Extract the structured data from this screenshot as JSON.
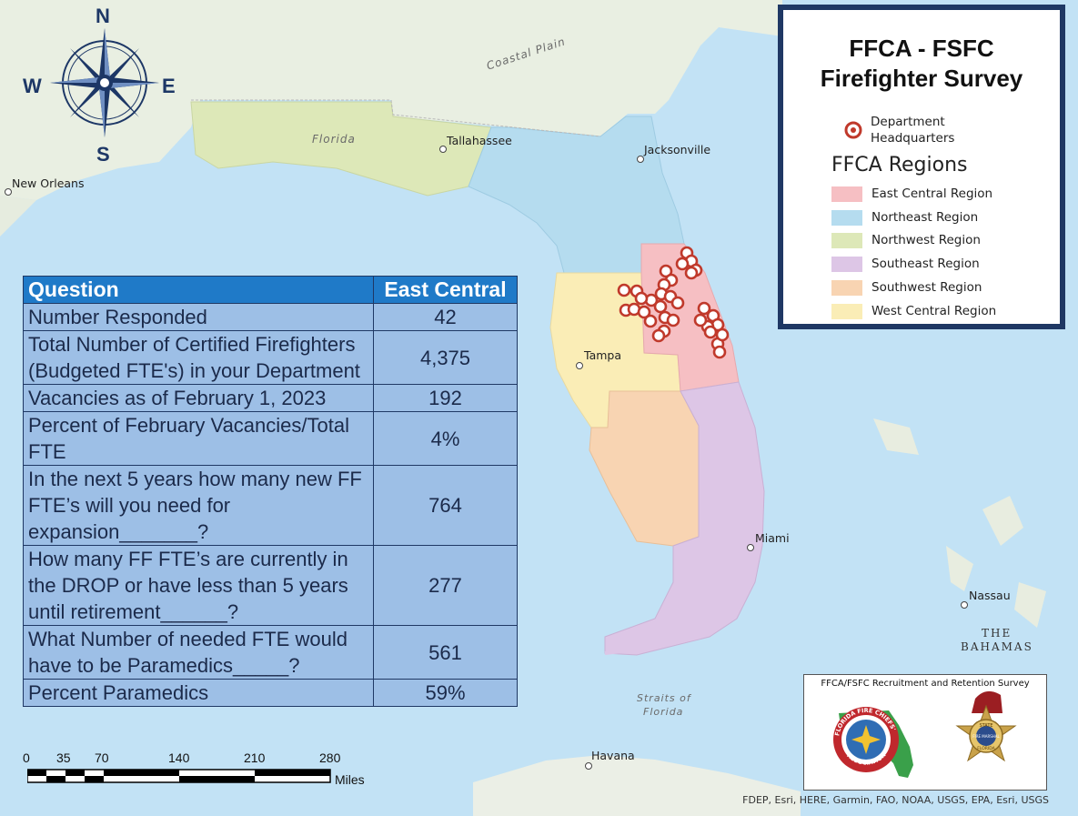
{
  "map": {
    "place_labels": {
      "coastal_plain": "Coastal Plain",
      "florida": "Florida",
      "tallahassee": "Tallahassee",
      "jacksonville": "Jacksonville",
      "new_orleans": "New Orleans",
      "tampa": "Tampa",
      "miami": "Miami",
      "nassau": "Nassau",
      "bahamas_line1": "THE",
      "bahamas_line2": "BAHAMAS",
      "straits_line1": "Straits of",
      "straits_line2": "Florida",
      "havana": "Havana"
    },
    "compass": {
      "n": "N",
      "s": "S",
      "e": "E",
      "w": "W"
    },
    "headquarters_count_shown": 33
  },
  "legend": {
    "title_line1": "FFCA - FSFC",
    "title_line2": "Firefighter Survey",
    "hq_line1": "Department",
    "hq_line2": "Headquarters",
    "regions_title": "FFCA Regions",
    "regions": [
      {
        "name": "East Central Region",
        "color": "#f6bfc3"
      },
      {
        "name": "Northeast Region",
        "color": "#b5dcef"
      },
      {
        "name": "Northwest Region",
        "color": "#dde8b8"
      },
      {
        "name": "Southeast Region",
        "color": "#ddc6e6"
      },
      {
        "name": "Southwest Region",
        "color": "#f8d4b2"
      },
      {
        "name": "West Central Region",
        "color": "#faedb6"
      }
    ]
  },
  "table": {
    "header_question": "Question",
    "header_value": "East Central",
    "rows": [
      {
        "question": "Number Responded",
        "value": "42"
      },
      {
        "question": "Total Number of Certified Firefighters (Budgeted FTE's) in your Department",
        "value": "4,375"
      },
      {
        "question": "Vacancies as of February 1, 2023",
        "value": "192"
      },
      {
        "question": "Percent of February Vacancies/Total FTE",
        "value": "4%"
      },
      {
        "question": "In the next 5 years how many new FF FTE’s will you need for expansion_______?",
        "value": "764"
      },
      {
        "question": "How many FF FTE’s are currently in the DROP or have less than 5 years until retirement______?",
        "value": "277"
      },
      {
        "question": "What Number of needed FTE would have to be Paramedics_____?",
        "value": "561"
      },
      {
        "question": "Percent Paramedics",
        "value": "59%"
      }
    ]
  },
  "scale": {
    "ticks": [
      "0",
      "35",
      "70",
      "140",
      "210",
      "280"
    ],
    "unit": "Miles"
  },
  "logos": {
    "title": "FFCA/FSFC Recruitment and Retention Survey",
    "ffca_ring_text": "FLORIDA FIRE CHIEFS' ASSOCIATION",
    "ffca_ring_short": "FLORIDA FIRE CHIEFS'",
    "ffca_ring_bottom": "ASSOCIATION",
    "marshal_text_1": "STATE",
    "marshal_text_2": "FIRE MARSHAL",
    "marshal_text_3": "FLORIDA"
  },
  "credit": "FDEP, Esri, HERE, Garmin, FAO, NOAA, USGS, EPA, Esri, USGS"
}
